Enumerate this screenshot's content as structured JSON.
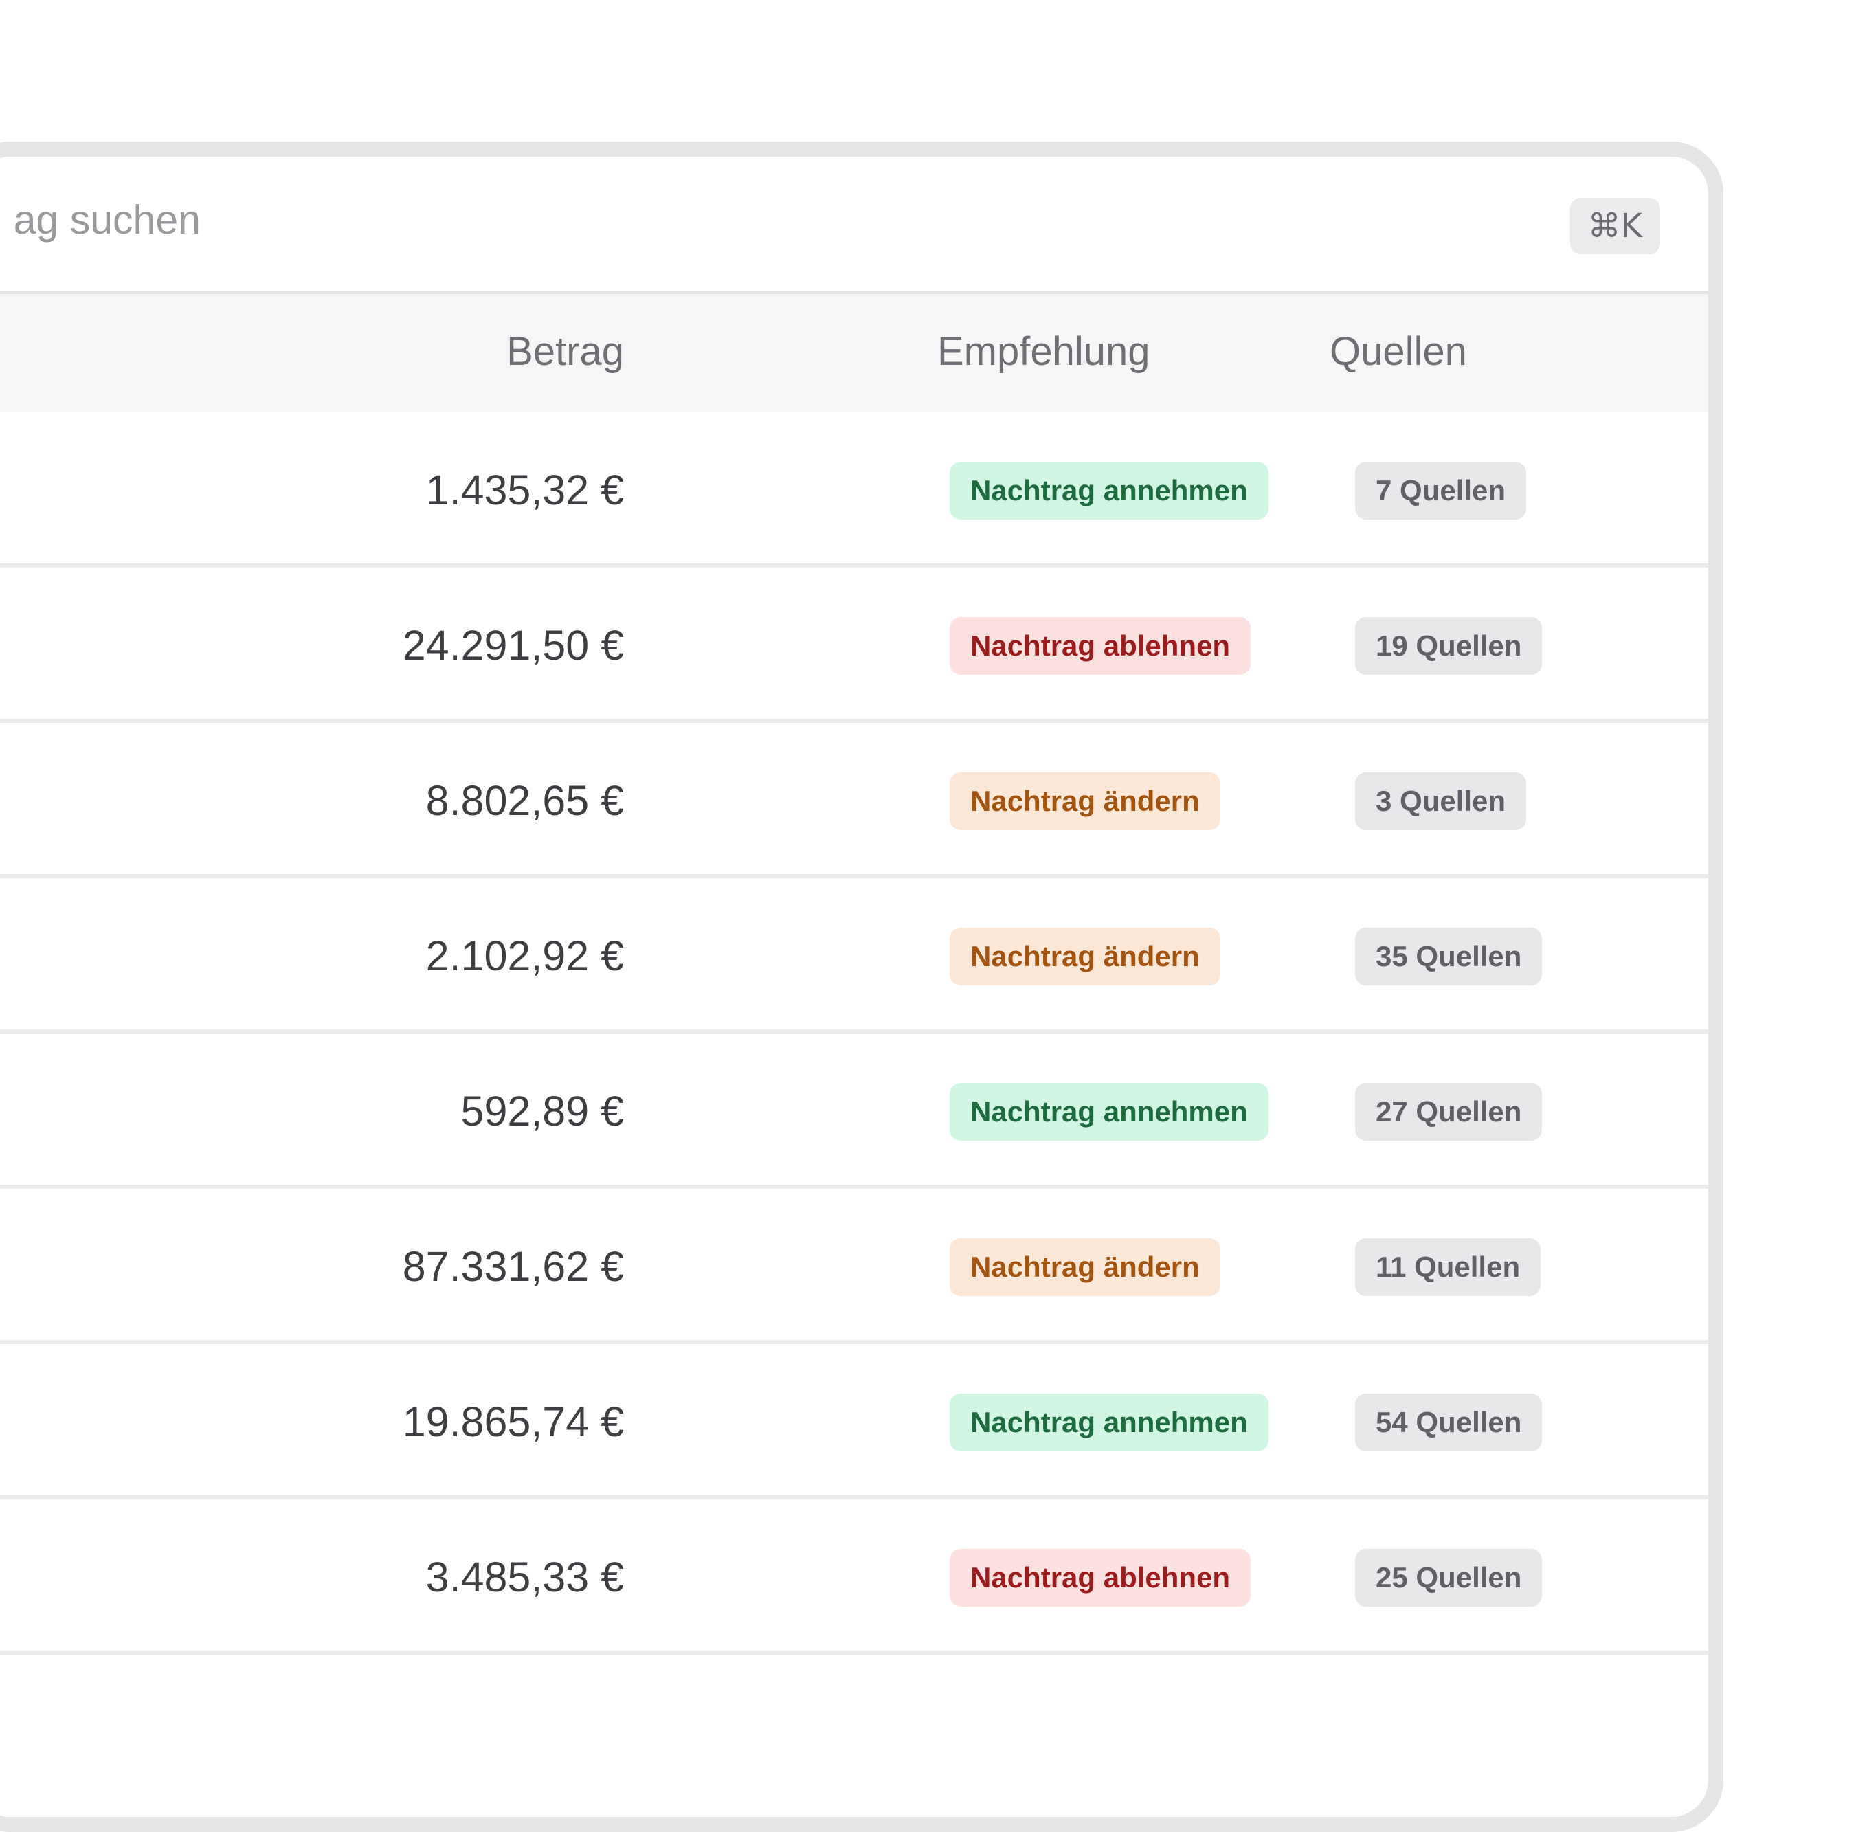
{
  "search": {
    "placeholder_visible": "ag suchen",
    "shortcut": "⌘K"
  },
  "table": {
    "columns": {
      "amount": "Betrag",
      "recommendation": "Empfehlung",
      "sources": "Quellen"
    },
    "rows": [
      {
        "amount": "1.435,32 €",
        "recommendation": "Nachtrag annehmen",
        "sources": "7 Quellen",
        "tone": "green"
      },
      {
        "amount": "24.291,50 €",
        "recommendation": "Nachtrag ablehnen",
        "sources": "19 Quellen",
        "tone": "red"
      },
      {
        "amount": "8.802,65 €",
        "recommendation": "Nachtrag ändern",
        "sources": "3 Quellen",
        "tone": "orange"
      },
      {
        "amount": "2.102,92 €",
        "recommendation": "Nachtrag ändern",
        "sources": "35 Quellen",
        "tone": "orange"
      },
      {
        "amount": "592,89 €",
        "recommendation": "Nachtrag annehmen",
        "sources": "27 Quellen",
        "tone": "green"
      },
      {
        "amount": "87.331,62 €",
        "recommendation": "Nachtrag ändern",
        "sources": "11 Quellen",
        "tone": "orange"
      },
      {
        "amount": "19.865,74 €",
        "recommendation": "Nachtrag annehmen",
        "sources": "54 Quellen",
        "tone": "green"
      },
      {
        "amount": "3.485,33 €",
        "recommendation": "Nachtrag ablehnen",
        "sources": "25 Quellen",
        "tone": "red"
      }
    ]
  },
  "colors": {
    "green_bg": "#d1f6e4",
    "green_text": "#1d6b3e",
    "red_bg": "#fde1e1",
    "red_text": "#9b1c1c",
    "orange_bg": "#fde8d8",
    "orange_text": "#a5540f"
  }
}
